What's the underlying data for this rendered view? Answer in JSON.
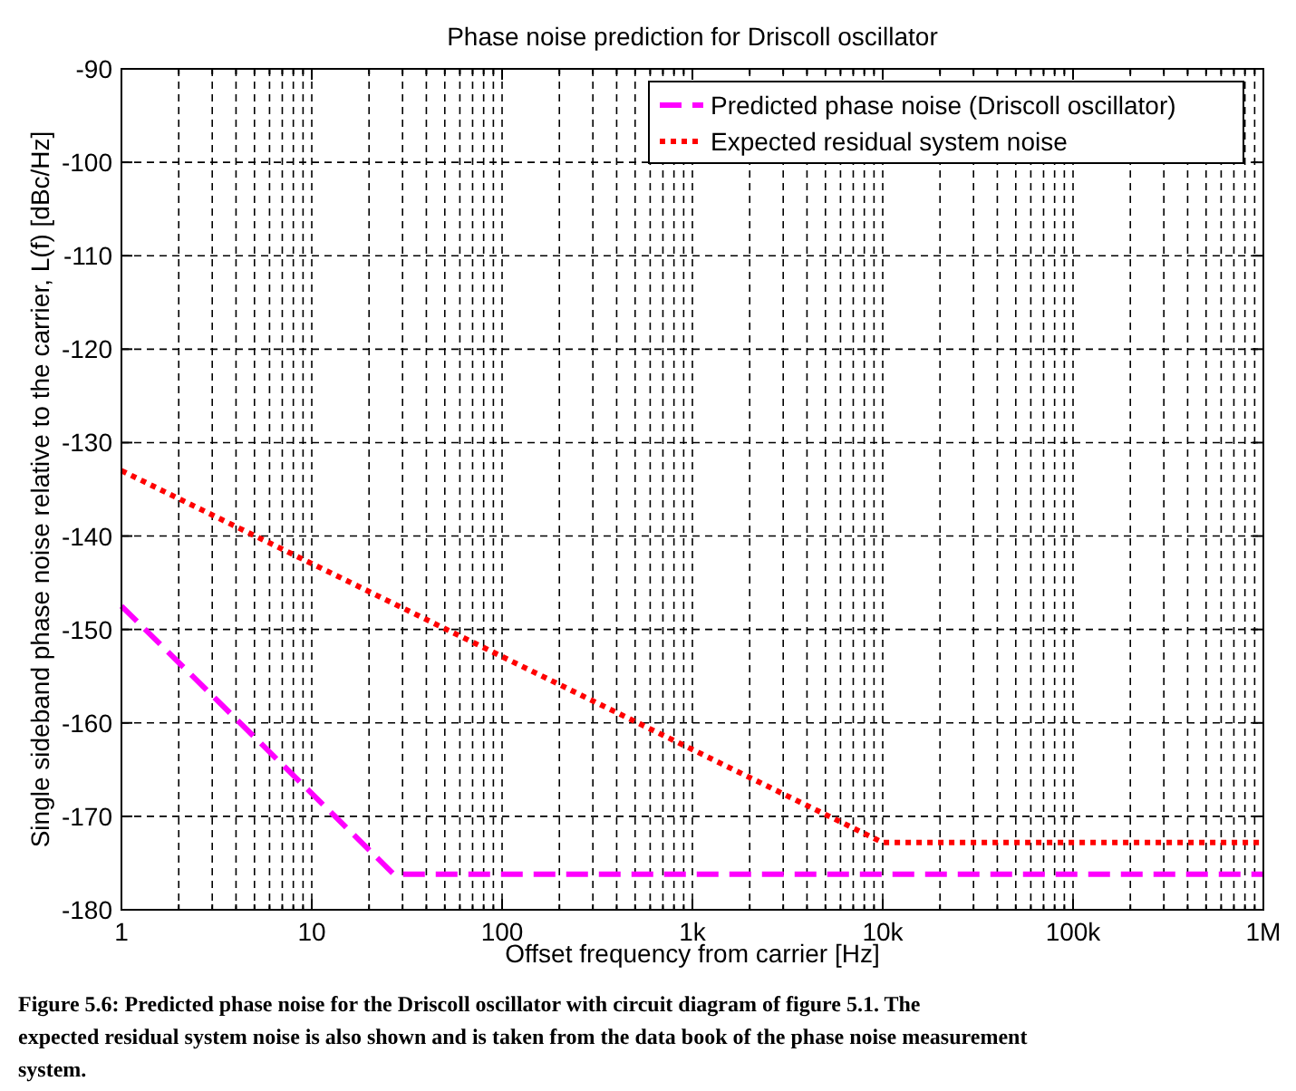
{
  "chart_data": {
    "type": "line",
    "title": "Phase noise prediction for Driscoll oscillator",
    "xlabel": "Offset frequency from carrier [Hz]",
    "ylabel": "Single sideband phase noise relative to the carrier, L(f) [dBc/Hz]",
    "log": "x",
    "grid": true,
    "legend": "top right",
    "xlim": [
      1,
      1000000
    ],
    "ylim": [
      -180,
      -90
    ],
    "xticks": [
      1,
      {
        "value": 2,
        "label": null
      },
      {
        "value": 3,
        "label": null
      },
      {
        "value": 4,
        "label": null
      },
      {
        "value": 5,
        "label": null
      },
      {
        "value": 6,
        "label": null
      },
      {
        "value": 7,
        "label": null
      },
      {
        "value": 8,
        "label": null
      },
      {
        "value": 9,
        "label": null
      },
      10,
      {
        "value": 20,
        "label": null
      },
      {
        "value": 30,
        "label": null
      },
      {
        "value": 40,
        "label": null
      },
      {
        "value": 50,
        "label": null
      },
      {
        "value": 60,
        "label": null
      },
      {
        "value": 70,
        "label": null
      },
      {
        "value": 80,
        "label": null
      },
      {
        "value": 90,
        "label": null
      },
      100,
      {
        "value": 200,
        "label": null
      },
      {
        "value": 300,
        "label": null
      },
      {
        "value": 400,
        "label": null
      },
      {
        "value": 500,
        "label": null
      },
      {
        "value": 600,
        "label": null
      },
      {
        "value": 700,
        "label": null
      },
      {
        "value": 800,
        "label": null
      },
      {
        "value": 900,
        "label": null
      },
      {
        "value": 1000,
        "label": "1k"
      },
      {
        "value": 2000,
        "label": null
      },
      {
        "value": 3000,
        "label": null
      },
      {
        "value": 4000,
        "label": null
      },
      {
        "value": 5000,
        "label": null
      },
      {
        "value": 6000,
        "label": null
      },
      {
        "value": 7000,
        "label": null
      },
      {
        "value": 8000,
        "label": null
      },
      {
        "value": 9000,
        "label": null
      },
      {
        "value": 10000,
        "label": "10k"
      },
      {
        "value": 20000,
        "label": null
      },
      {
        "value": 30000,
        "label": null
      },
      {
        "value": 40000,
        "label": null
      },
      {
        "value": 50000,
        "label": null
      },
      {
        "value": 60000,
        "label": null
      },
      {
        "value": 70000,
        "label": null
      },
      {
        "value": 80000,
        "label": null
      },
      {
        "value": 90000,
        "label": null
      },
      {
        "value": 100000,
        "label": "100k"
      },
      {
        "value": 200000,
        "label": null
      },
      {
        "value": 300000,
        "label": null
      },
      {
        "value": 400000,
        "label": null
      },
      {
        "value": 500000,
        "label": null
      },
      {
        "value": 600000,
        "label": null
      },
      {
        "value": 700000,
        "label": null
      },
      {
        "value": 800000,
        "label": null
      },
      {
        "value": 900000,
        "label": null
      },
      {
        "value": 1000000,
        "label": "1M"
      }
    ],
    "yticks": [
      -180,
      -170,
      -160,
      -150,
      -140,
      -130,
      -120,
      -110,
      -100,
      -90
    ],
    "series": [
      {
        "name": "Predicted phase noise (Driscoll oscillator)",
        "color": "#ff00ff",
        "line_style": "dashed",
        "x": [
          1,
          27,
          1000000
        ],
        "values": [
          -147.5,
          -176.2,
          -176.2
        ]
      },
      {
        "name": "Expected residual system noise",
        "color": "#ff0000",
        "line_style": "dotted",
        "x": [
          1,
          10000,
          1000000
        ],
        "values": [
          -133,
          -172.8,
          -172.8
        ]
      }
    ],
    "annotations": [
      "Figure 5.6:  Predicted phase noise for the Driscoll oscillator with circuit diagram of figure 5.1.  The expected residual system noise is also shown and is taken from the data book of the phase noise measurement system."
    ]
  }
}
